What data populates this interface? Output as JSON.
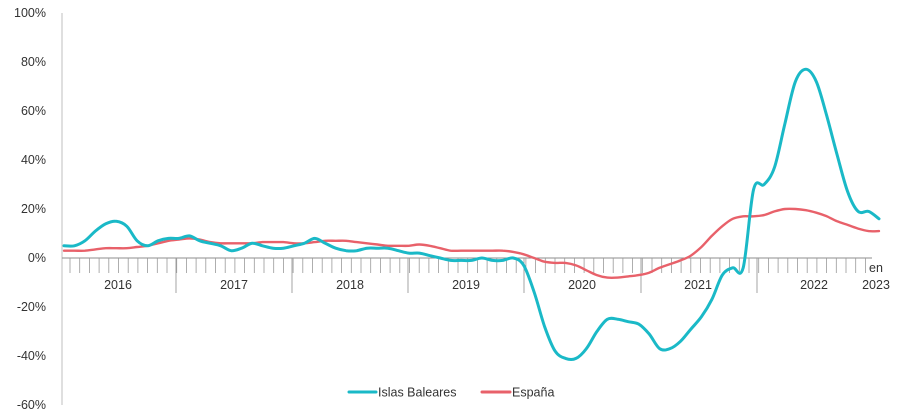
{
  "chart_data": {
    "type": "line",
    "ylim": [
      -60,
      100
    ],
    "y_ticks": [
      -60,
      -40,
      -20,
      0,
      20,
      40,
      60,
      80,
      100
    ],
    "y_tick_labels": [
      "-60%",
      "-40%",
      "-20%",
      "0%",
      "20%",
      "40%",
      "60%",
      "80%",
      "100%"
    ],
    "x_tick_labels": [
      "2016",
      "2017",
      "2018",
      "2019",
      "2020",
      "2021",
      "2022"
    ],
    "x_tick_last_top": "en",
    "x_tick_last_bottom": "2023",
    "grid": false,
    "legend_position": "bottom-center",
    "series": [
      {
        "name": "Islas Baleares",
        "color": "#1ab9c7",
        "values": [
          5,
          5,
          7,
          11,
          14,
          15,
          13,
          7,
          5,
          7,
          8,
          8,
          9,
          7,
          6,
          5,
          3,
          4,
          6,
          5,
          4,
          4,
          5,
          6,
          8,
          6,
          4,
          3,
          3,
          4,
          4,
          4,
          3,
          2,
          2,
          1,
          0,
          -1,
          -1,
          -1,
          0,
          -1,
          -1,
          0,
          -3,
          -14,
          -28,
          -38,
          -41,
          -41,
          -37,
          -30,
          -25,
          -25,
          -26,
          -27,
          -31,
          -37,
          -37,
          -34,
          -29,
          -24,
          -17,
          -7,
          -4,
          -4,
          28,
          30,
          37,
          55,
          72,
          77,
          72,
          58,
          42,
          27,
          19,
          19,
          16
        ]
      },
      {
        "name": "España",
        "color": "#e8616a",
        "values": [
          3,
          3,
          3,
          3.5,
          4,
          4,
          4,
          4.5,
          5,
          6,
          7,
          7.5,
          8,
          7.5,
          6.5,
          6,
          6,
          6,
          6,
          6.5,
          6.5,
          6.5,
          6,
          6,
          6.5,
          7,
          7,
          7,
          6.5,
          6,
          5.5,
          5,
          5,
          5,
          5.5,
          5,
          4,
          3,
          3,
          3,
          3,
          3,
          3,
          2.5,
          1.5,
          0,
          -1.5,
          -2,
          -2,
          -3,
          -5,
          -7,
          -8,
          -8,
          -7.5,
          -7,
          -6,
          -4,
          -2.5,
          -1,
          1,
          4.5,
          9,
          13,
          16,
          17,
          17,
          17.5,
          19,
          20,
          20,
          19.5,
          18.5,
          17,
          15,
          13.5,
          12,
          11,
          11
        ]
      }
    ]
  }
}
